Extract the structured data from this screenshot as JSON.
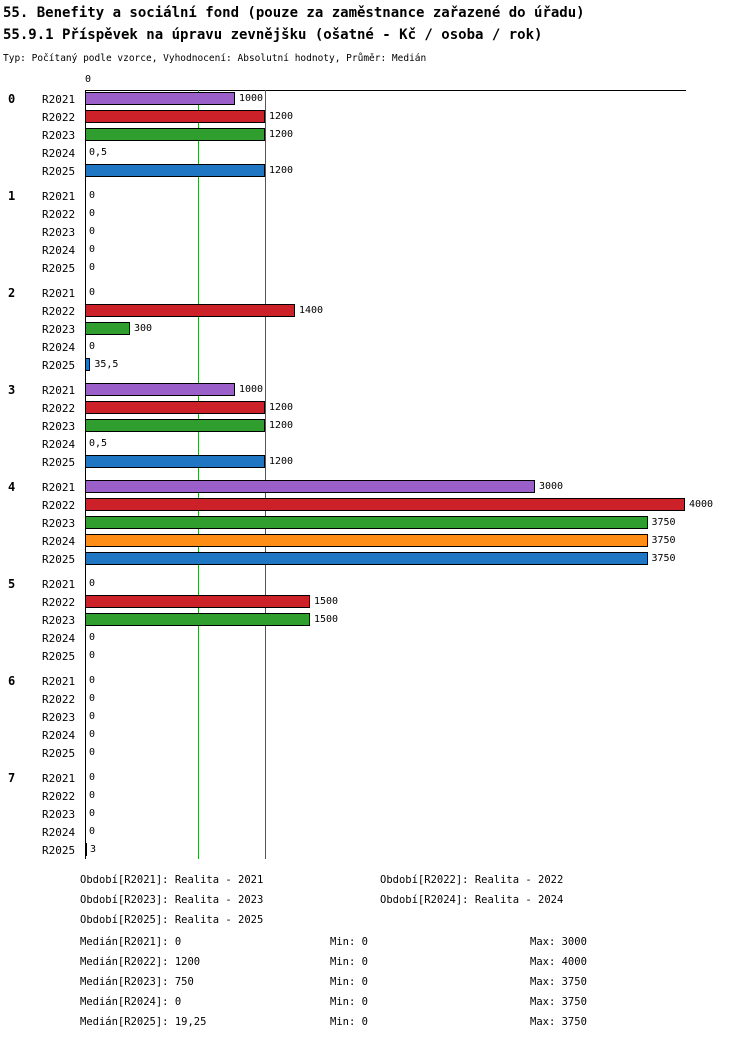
{
  "title_line1": "55. Benefity a sociální fond (pouze za zaměstnance zařazené do úřadu)",
  "title_line2": "55.9.1 Příspěvek na úpravu zevnějšku (ošatné - Kč / osoba / rok)",
  "subtitle": "Typ: Počítaný podle vzorce, Vyhodnocení: Absolutní hodnoty, Průměr: Medián",
  "chart_data": {
    "type": "bar",
    "orientation": "horizontal",
    "axis": {
      "min": 0,
      "max": 4000,
      "zero_label": "0"
    },
    "series_labels": [
      "R2021",
      "R2022",
      "R2023",
      "R2024",
      "R2025"
    ],
    "series_colors": {
      "R2021": "#9a5fc8",
      "R2022": "#cc2128",
      "R2023": "#2f9e2f",
      "R2024": "#fd8d14",
      "R2025": "#1f77c4"
    },
    "reference_lines": [
      {
        "name": "median-R2023",
        "value": 750,
        "color": "#2f9e2f"
      },
      {
        "name": "median-R2022",
        "value": 1200,
        "color": "#cc2128"
      }
    ],
    "groups": [
      {
        "label": "0",
        "values": [
          1000,
          1200,
          1200,
          0.5,
          1200
        ],
        "value_labels": [
          "1000",
          "1200",
          "1200",
          "0,5",
          "1200"
        ]
      },
      {
        "label": "1",
        "values": [
          0,
          0,
          0,
          0,
          0
        ],
        "value_labels": [
          "0",
          "0",
          "0",
          "0",
          "0"
        ]
      },
      {
        "label": "2",
        "values": [
          0,
          1400,
          300,
          0,
          35.5
        ],
        "value_labels": [
          "0",
          "1400",
          "300",
          "0",
          "35,5"
        ]
      },
      {
        "label": "3",
        "values": [
          1000,
          1200,
          1200,
          0.5,
          1200
        ],
        "value_labels": [
          "1000",
          "1200",
          "1200",
          "0,5",
          "1200"
        ]
      },
      {
        "label": "4",
        "values": [
          3000,
          4000,
          3750,
          3750,
          3750
        ],
        "value_labels": [
          "3000",
          "4000",
          "3750",
          "3750",
          "3750"
        ]
      },
      {
        "label": "5",
        "values": [
          0,
          1500,
          1500,
          0,
          0
        ],
        "value_labels": [
          "0",
          "1500",
          "1500",
          "0",
          "0"
        ]
      },
      {
        "label": "6",
        "values": [
          0,
          0,
          0,
          0,
          0
        ],
        "value_labels": [
          "0",
          "0",
          "0",
          "0",
          "0"
        ]
      },
      {
        "label": "7",
        "values": [
          0,
          0,
          0,
          0,
          3
        ],
        "value_labels": [
          "0",
          "0",
          "0",
          "0",
          "3"
        ]
      }
    ]
  },
  "legend": {
    "period_rows": [
      [
        "Období[R2021]: Realita - 2021",
        "Období[R2022]: Realita - 2022"
      ],
      [
        "Období[R2023]: Realita - 2023",
        "Období[R2024]: Realita - 2024"
      ],
      [
        "Období[R2025]: Realita - 2025"
      ]
    ],
    "stats_rows": [
      {
        "median": "Medián[R2021]: 0",
        "min": "Min: 0",
        "max": "Max: 3000"
      },
      {
        "median": "Medián[R2022]: 1200",
        "min": "Min: 0",
        "max": "Max: 4000"
      },
      {
        "median": "Medián[R2023]: 750",
        "min": "Min: 0",
        "max": "Max: 3750"
      },
      {
        "median": "Medián[R2024]: 0",
        "min": "Min: 0",
        "max": "Max: 3750"
      },
      {
        "median": "Medián[R2025]: 19,25",
        "min": "Min: 0",
        "max": "Max: 3750"
      }
    ]
  }
}
